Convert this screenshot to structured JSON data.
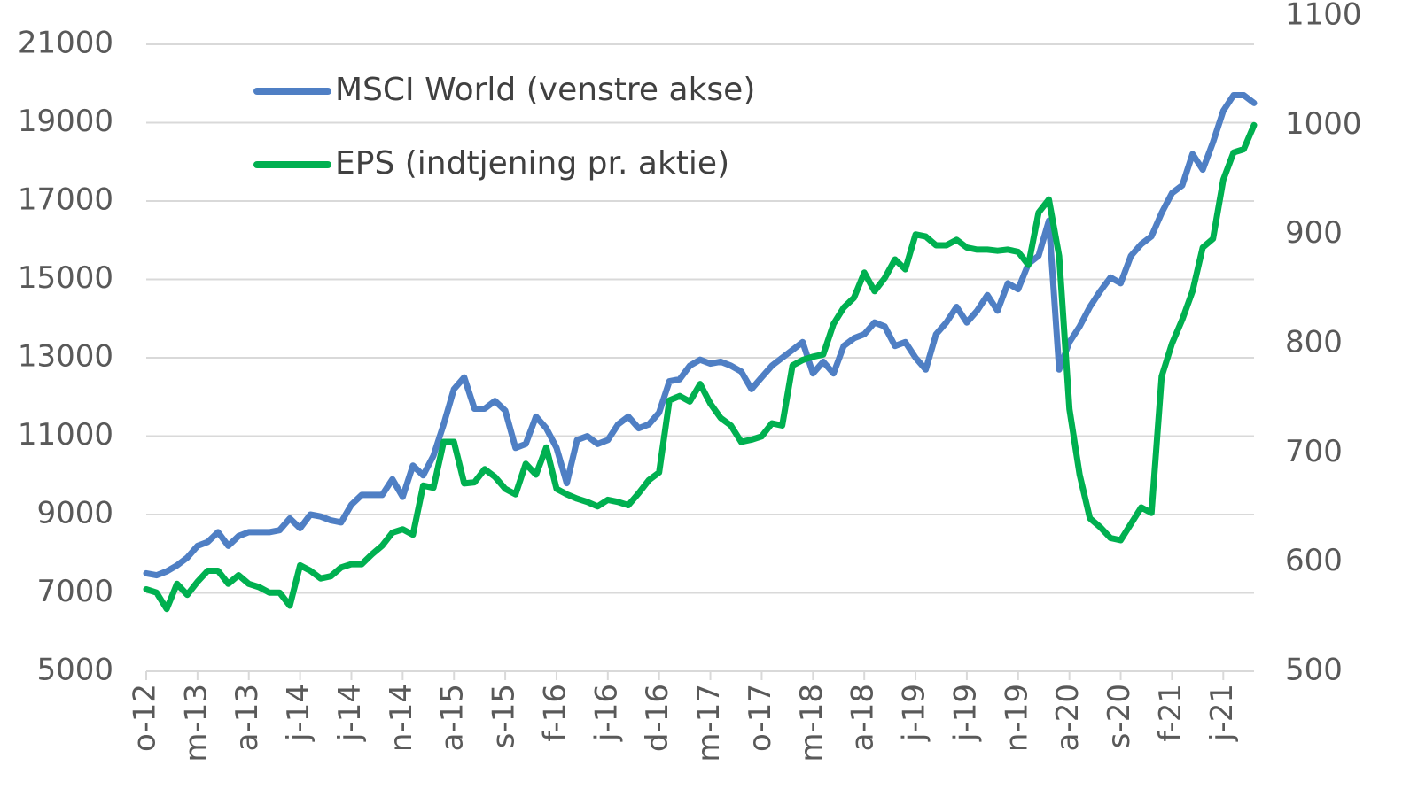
{
  "chart_data": {
    "type": "line",
    "categories": [
      "o-12",
      null,
      null,
      null,
      null,
      "m-13",
      null,
      null,
      null,
      null,
      "a-13",
      null,
      null,
      null,
      null,
      "j-14",
      null,
      null,
      null,
      null,
      "j-14",
      null,
      null,
      null,
      null,
      "n-14",
      null,
      null,
      null,
      null,
      "a-15",
      null,
      null,
      null,
      null,
      "s-15",
      null,
      null,
      null,
      null,
      "f-16",
      null,
      null,
      null,
      null,
      "j-16",
      null,
      null,
      null,
      null,
      "d-16",
      null,
      null,
      null,
      null,
      "m-17",
      null,
      null,
      null,
      null,
      "o-17",
      null,
      null,
      null,
      null,
      "m-18",
      null,
      null,
      null,
      null,
      "a-18",
      null,
      null,
      null,
      null,
      "j-19",
      null,
      null,
      null,
      null,
      "j-19",
      null,
      null,
      null,
      null,
      "n-19",
      null,
      null,
      null,
      null,
      "a-20",
      null,
      null,
      null,
      null,
      "s-20",
      null,
      null,
      null,
      null,
      "f-21",
      null,
      null,
      null,
      null,
      "j-21",
      null,
      null,
      null
    ],
    "series": [
      {
        "name": "MSCI World (venstre akse)",
        "color": "#4f7fc4",
        "axis": "y",
        "values": [
          7500,
          7450,
          7550,
          7700,
          7900,
          8200,
          8300,
          8550,
          8200,
          8450,
          8550,
          8550,
          8550,
          8600,
          8900,
          8650,
          9000,
          8950,
          8850,
          8800,
          9250,
          9500,
          9500,
          9500,
          9900,
          9450,
          10250,
          10000,
          10500,
          11300,
          12200,
          12500,
          11700,
          11700,
          11900,
          11650,
          10700,
          10800,
          11500,
          11200,
          10700,
          9800,
          10900,
          11000,
          10800,
          10900,
          11300,
          11500,
          11200,
          11300,
          11600,
          12400,
          12450,
          12800,
          12950,
          12850,
          12900,
          12800,
          12650,
          12200,
          12500,
          12800,
          13000,
          13200,
          13400,
          12600,
          12900,
          12600,
          13300,
          13500,
          13600,
          13900,
          13800,
          13300,
          13400,
          13000,
          12700,
          13600,
          13900,
          14300,
          13900,
          14200,
          14600,
          14200,
          14900,
          14750,
          15400,
          15600,
          16500,
          12700,
          13400,
          13800,
          14300,
          14700,
          15050,
          14900,
          15600,
          15900,
          16100,
          16700,
          17200,
          17400,
          18200,
          17800,
          18500,
          19300,
          19700,
          19700,
          19500
        ]
      },
      {
        "name": "EPS (indtjening pr. aktie)",
        "color": "#00b050",
        "axis": "y2",
        "values": [
          575,
          572,
          557,
          580,
          570,
          582,
          592,
          592,
          580,
          588,
          580,
          577,
          572,
          572,
          560,
          597,
          592,
          585,
          587,
          595,
          598,
          598,
          607,
          615,
          627,
          630,
          625,
          670,
          668,
          710,
          710,
          672,
          673,
          685,
          678,
          667,
          662,
          690,
          680,
          705,
          667,
          662,
          658,
          655,
          651,
          657,
          655,
          652,
          663,
          675,
          682,
          748,
          752,
          747,
          763,
          745,
          732,
          725,
          710,
          712,
          715,
          727,
          725,
          780,
          785,
          788,
          790,
          818,
          833,
          842,
          865,
          848,
          860,
          877,
          868,
          900,
          898,
          890,
          890,
          895,
          888,
          886,
          886,
          885,
          886,
          884,
          872,
          920,
          932,
          880,
          740,
          680,
          640,
          632,
          622,
          620,
          635,
          650,
          645,
          770,
          800,
          822,
          848,
          888,
          896,
          950,
          975,
          978,
          1000
        ]
      }
    ],
    "ylim": [
      5000,
      21000
    ],
    "yticks": [
      5000,
      7000,
      9000,
      11000,
      13000,
      15000,
      17000,
      19000,
      21000
    ],
    "y2lim": [
      500,
      1100
    ],
    "y2ticks": [
      500,
      600,
      700,
      800,
      900,
      1000,
      1100
    ],
    "grid": true,
    "legend": "upper left"
  }
}
